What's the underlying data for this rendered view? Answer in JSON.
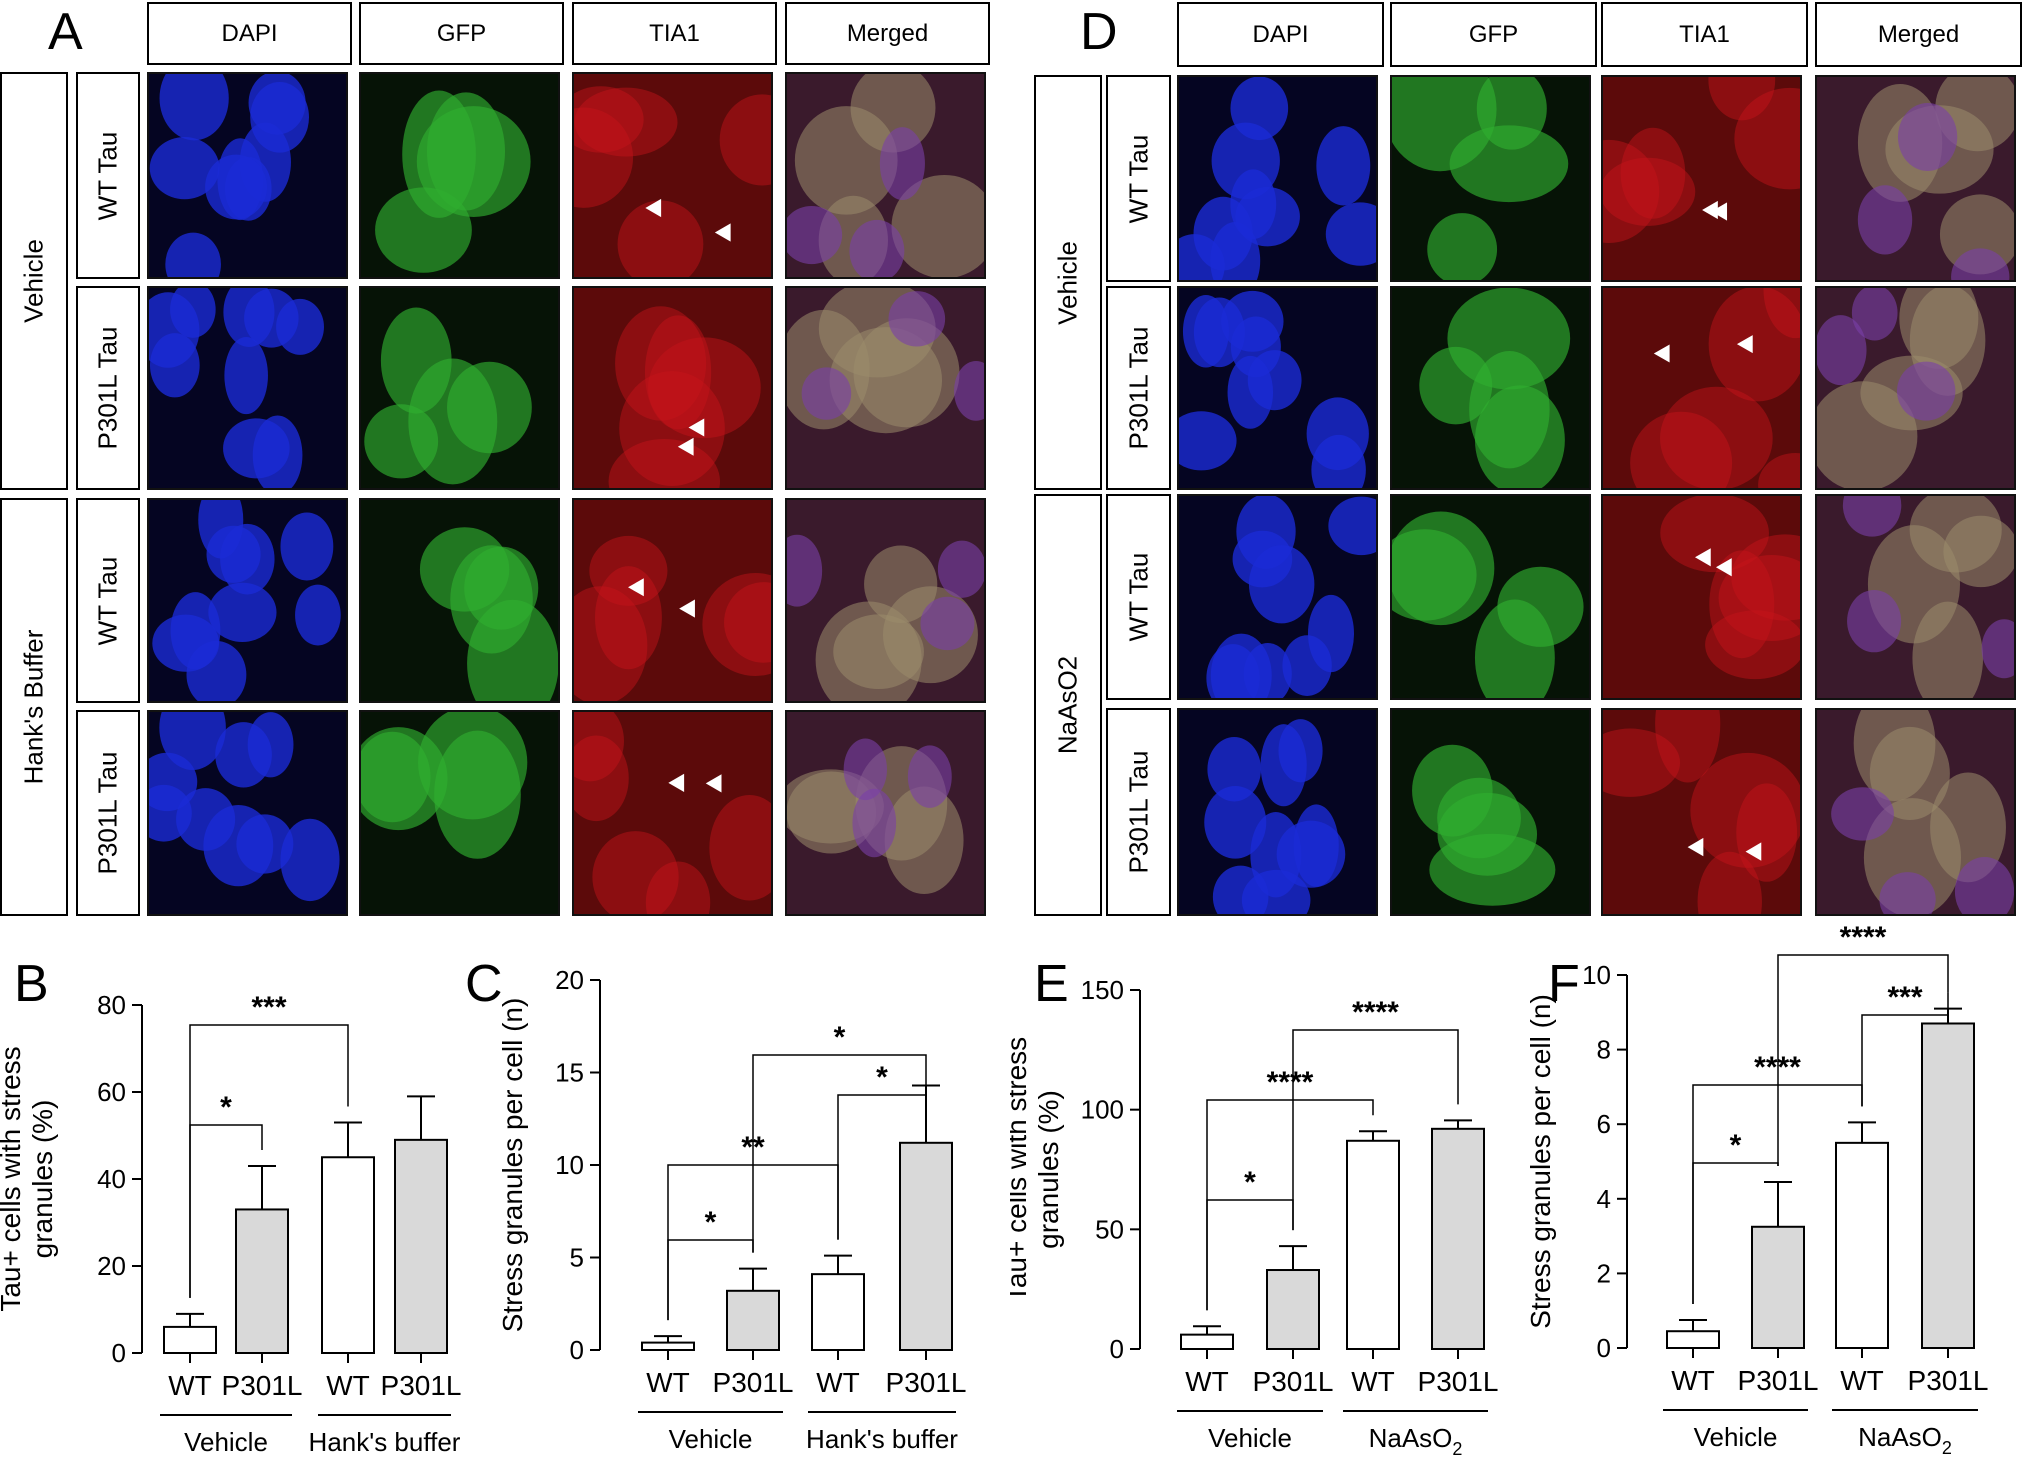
{
  "panel_A": {
    "letter": "A",
    "channels": [
      "DAPI",
      "GFP",
      "TIA1",
      "Merged"
    ],
    "conditions": [
      "Vehicle",
      "Hank's Buffer"
    ],
    "rows": [
      "WT Tau",
      "P301L Tau",
      "WT Tau",
      "P301L Tau"
    ]
  },
  "panel_D": {
    "letter": "D",
    "channels": [
      "DAPI",
      "GFP",
      "TIA1",
      "Merged"
    ],
    "conditions": [
      "Vehicle",
      "NaAsO2"
    ],
    "rows": [
      "WT Tau",
      "P301L Tau",
      "WT Tau",
      "P301L Tau"
    ]
  },
  "colors": {
    "dapi": "#1a2bd6",
    "gfp": "#2fae2f",
    "tia1": "#c8141a",
    "bar_p301l": "#d9d9d9",
    "bar_wt": "#ffffff",
    "arrowhead": "#ffffff"
  },
  "chart_data": [
    {
      "panel": "B",
      "type": "bar",
      "ylabel": "Tau+ cells with stress granules (%)",
      "ylim": [
        0,
        80
      ],
      "yticks": [
        0,
        20,
        40,
        60,
        80
      ],
      "categories": [
        "WT",
        "P301L",
        "WT",
        "P301L"
      ],
      "groups": [
        "Vehicle",
        "Hank's buffer"
      ],
      "values": [
        6,
        33,
        45,
        49
      ],
      "errors": [
        3,
        10,
        8,
        10
      ],
      "fills": [
        "white",
        "gray",
        "white",
        "gray"
      ],
      "significance": [
        {
          "from": 0,
          "to": 1,
          "label": "*"
        },
        {
          "from": 0,
          "to": 2,
          "label": "***"
        }
      ]
    },
    {
      "panel": "C",
      "type": "bar",
      "ylabel": "Stress granules per cell (n)",
      "ylim": [
        0,
        20
      ],
      "yticks": [
        0,
        5,
        10,
        15,
        20
      ],
      "categories": [
        "WT",
        "P301L",
        "WT",
        "P301L"
      ],
      "groups": [
        "Vehicle",
        "Hank's buffer"
      ],
      "values": [
        0.4,
        3.2,
        4.1,
        11.2
      ],
      "errors": [
        0.35,
        1.2,
        1.0,
        3.1
      ],
      "fills": [
        "white",
        "gray",
        "white",
        "gray"
      ],
      "significance": [
        {
          "from": 0,
          "to": 1,
          "label": "*"
        },
        {
          "from": 0,
          "to": 2,
          "label": "**"
        },
        {
          "from": 2,
          "to": 3,
          "label": "*"
        },
        {
          "from": 1,
          "to": 3,
          "label": "*"
        }
      ]
    },
    {
      "panel": "E",
      "type": "bar",
      "ylabel": "Tau+ cells with stress granules (%)",
      "ylim": [
        0,
        150
      ],
      "yticks": [
        0,
        50,
        100,
        150
      ],
      "categories": [
        "WT",
        "P301L",
        "WT",
        "P301L"
      ],
      "groups": [
        "Vehicle",
        "NaAsO2"
      ],
      "values": [
        6,
        33,
        87,
        92
      ],
      "errors": [
        3.5,
        10,
        4,
        3.5
      ],
      "fills": [
        "white",
        "gray",
        "white",
        "gray"
      ],
      "significance": [
        {
          "from": 0,
          "to": 1,
          "label": "*"
        },
        {
          "from": 0,
          "to": 2,
          "label": "****"
        },
        {
          "from": 1,
          "to": 3,
          "label": "****"
        }
      ]
    },
    {
      "panel": "F",
      "type": "bar",
      "ylabel": "Stress granules per cell (n)",
      "ylim": [
        0,
        10
      ],
      "yticks": [
        0,
        2,
        4,
        6,
        8,
        10
      ],
      "categories": [
        "WT",
        "P301L",
        "WT",
        "P301L"
      ],
      "groups": [
        "Vehicle",
        "NaAsO2"
      ],
      "values": [
        0.45,
        3.25,
        5.5,
        8.7
      ],
      "errors": [
        0.3,
        1.2,
        0.55,
        0.4
      ],
      "fills": [
        "white",
        "gray",
        "white",
        "gray"
      ],
      "significance": [
        {
          "from": 0,
          "to": 1,
          "label": "*"
        },
        {
          "from": 0,
          "to": 2,
          "label": "****"
        },
        {
          "from": 2,
          "to": 3,
          "label": "***"
        },
        {
          "from": 1,
          "to": 3,
          "label": "****"
        }
      ]
    }
  ]
}
